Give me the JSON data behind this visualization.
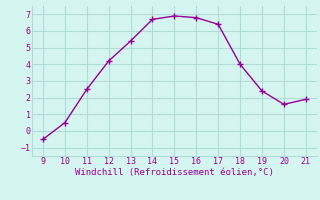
{
  "x": [
    9,
    10,
    11,
    12,
    13,
    14,
    15,
    16,
    17,
    18,
    19,
    20,
    21
  ],
  "y": [
    -0.5,
    0.5,
    2.5,
    4.2,
    5.4,
    6.7,
    6.9,
    6.8,
    6.4,
    4.0,
    2.4,
    1.6,
    1.9
  ],
  "line_color": "#990099",
  "marker": "+",
  "marker_size": 4,
  "marker_linewidth": 1.0,
  "line_width": 1.0,
  "background_color": "#d4f5f0",
  "grid_color": "#b0ddd8",
  "xlabel": "Windchill (Refroidissement éolien,°C)",
  "xlabel_color": "#990099",
  "tick_color": "#990099",
  "xlim": [
    8.5,
    21.5
  ],
  "ylim": [
    -1.5,
    7.5
  ],
  "yticks": [
    -1,
    0,
    1,
    2,
    3,
    4,
    5,
    6,
    7
  ],
  "xticks": [
    9,
    10,
    11,
    12,
    13,
    14,
    15,
    16,
    17,
    18,
    19,
    20,
    21
  ],
  "tick_fontsize": 6,
  "xlabel_fontsize": 6.5
}
